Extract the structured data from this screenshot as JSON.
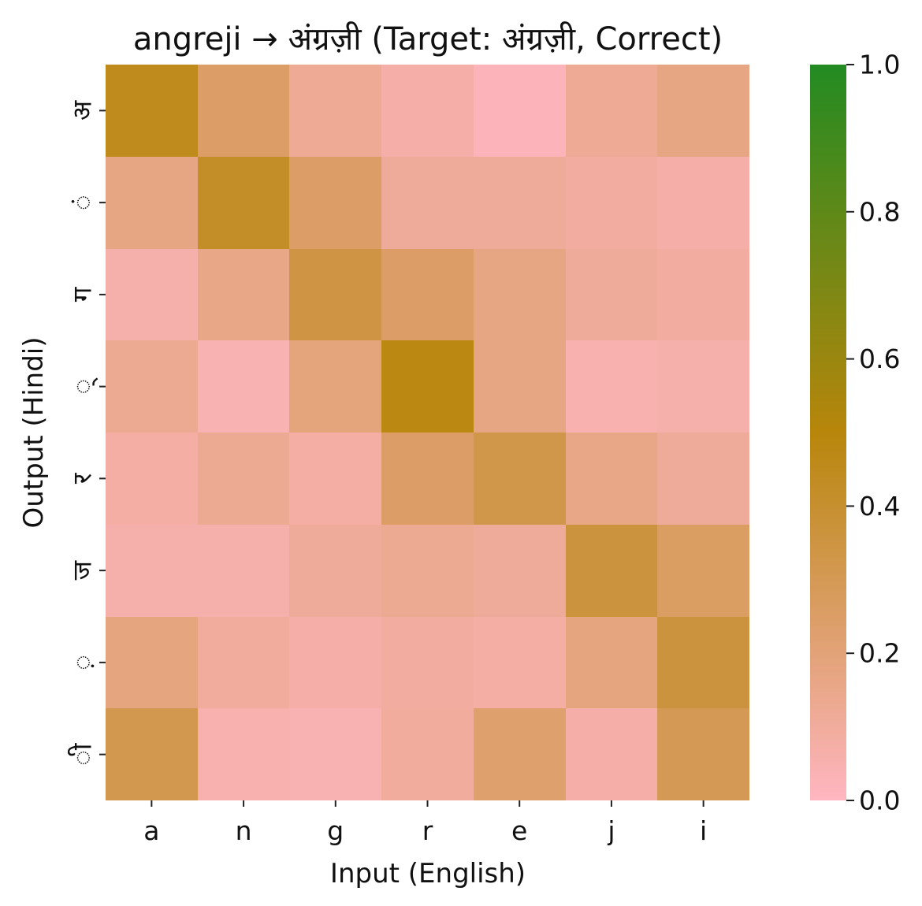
{
  "chart_data": {
    "type": "heatmap",
    "title": "angreji → अंग्रज़ी (Target: अंग्रज़ी, Correct)",
    "xlabel": "Input (English)",
    "ylabel": "Output (Hindi)",
    "x_categories": [
      "a",
      "n",
      "g",
      "r",
      "e",
      "j",
      "i"
    ],
    "y_categories": [
      "अ",
      "ं",
      "ग",
      "्",
      "र",
      "ज",
      "़",
      "ी"
    ],
    "values": [
      [
        0.45,
        0.25,
        0.12,
        0.07,
        0.02,
        0.12,
        0.17
      ],
      [
        0.17,
        0.42,
        0.25,
        0.11,
        0.11,
        0.09,
        0.07
      ],
      [
        0.06,
        0.16,
        0.34,
        0.25,
        0.17,
        0.11,
        0.09
      ],
      [
        0.13,
        0.04,
        0.19,
        0.48,
        0.17,
        0.05,
        0.06
      ],
      [
        0.08,
        0.13,
        0.08,
        0.25,
        0.33,
        0.16,
        0.11
      ],
      [
        0.06,
        0.06,
        0.11,
        0.13,
        0.11,
        0.36,
        0.26
      ],
      [
        0.18,
        0.1,
        0.07,
        0.09,
        0.08,
        0.18,
        0.36
      ],
      [
        0.31,
        0.05,
        0.04,
        0.1,
        0.23,
        0.07,
        0.3
      ]
    ],
    "colorbar": {
      "min": 0.0,
      "max": 1.0,
      "ticks": [
        "0.0",
        "0.2",
        "0.4",
        "0.6",
        "0.8",
        "1.0"
      ],
      "colors": [
        "#ffb6c1",
        "#b8860b",
        "#228b22"
      ]
    },
    "grid": false
  }
}
